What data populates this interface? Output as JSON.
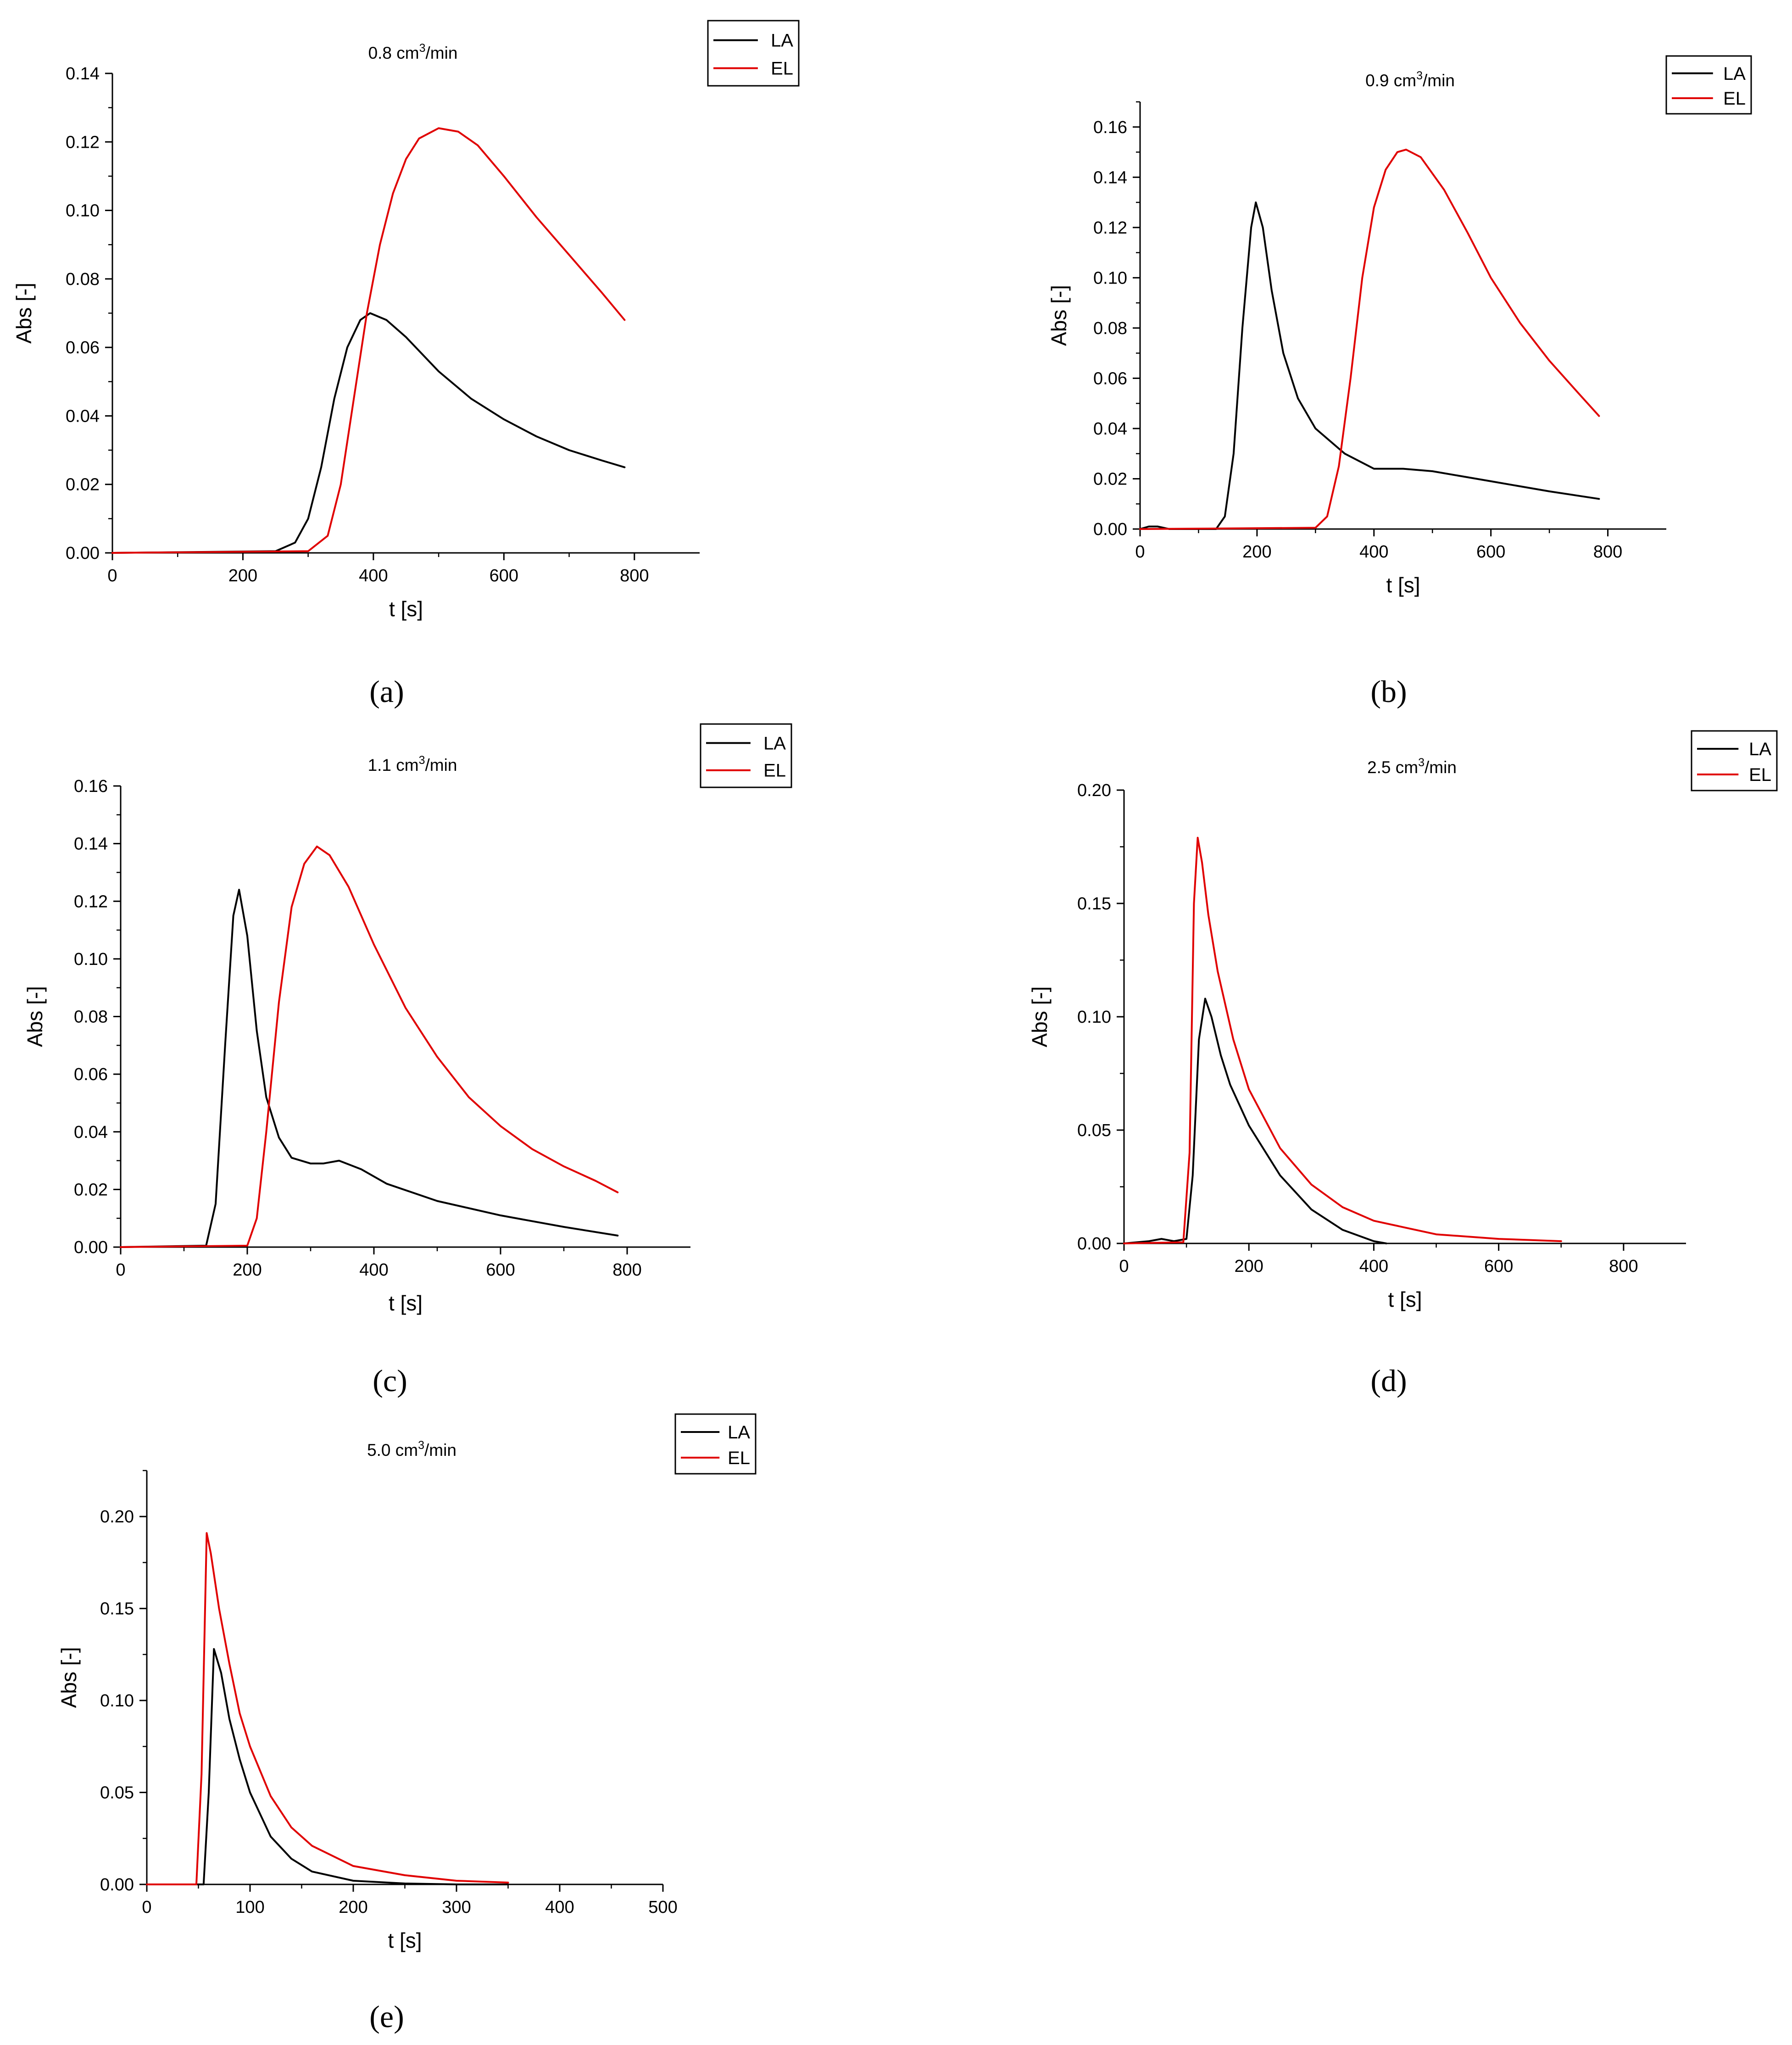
{
  "figure": {
    "legend_labels": [
      "LA",
      "EL"
    ],
    "series_colors": {
      "LA": "#000000",
      "EL": "#e00000"
    }
  },
  "chart_data": [
    {
      "type": "line",
      "panel_label": "(a)",
      "title": "0.8 cm³/min",
      "title_main": "0.8 cm",
      "title_sup": "3",
      "title_tail": "/min",
      "xlabel": "t [s]",
      "ylabel": "Abs [-]",
      "xlim": [
        0,
        900
      ],
      "ylim": [
        0,
        0.14
      ],
      "xticks": [
        0,
        200,
        400,
        600,
        800
      ],
      "yticks": [
        0.0,
        0.02,
        0.04,
        0.06,
        0.08,
        0.1,
        0.12,
        0.14
      ],
      "ytick_labels": [
        "0.00",
        "0.02",
        "0.04",
        "0.06",
        "0.08",
        "0.10",
        "0.12",
        "0.14"
      ],
      "legend": "top-right",
      "series": [
        {
          "name": "LA",
          "x": [
            0,
            250,
            280,
            300,
            320,
            340,
            360,
            380,
            395,
            420,
            450,
            500,
            550,
            600,
            650,
            700,
            750,
            785
          ],
          "y": [
            0,
            0.0005,
            0.003,
            0.01,
            0.025,
            0.045,
            0.06,
            0.068,
            0.07,
            0.068,
            0.063,
            0.053,
            0.045,
            0.039,
            0.034,
            0.03,
            0.027,
            0.025
          ]
        },
        {
          "name": "EL",
          "x": [
            0,
            300,
            330,
            350,
            370,
            390,
            410,
            430,
            450,
            470,
            500,
            530,
            560,
            600,
            650,
            700,
            750,
            785
          ],
          "y": [
            0,
            0.0005,
            0.005,
            0.02,
            0.045,
            0.07,
            0.09,
            0.105,
            0.115,
            0.121,
            0.124,
            0.123,
            0.119,
            0.11,
            0.098,
            0.087,
            0.076,
            0.068
          ]
        }
      ]
    },
    {
      "type": "line",
      "panel_label": "(b)",
      "title": "0.9 cm³/min",
      "title_main": "0.9 cm",
      "title_sup": "3",
      "title_tail": "/min",
      "xlabel": "t [s]",
      "ylabel": "Abs [-]",
      "xlim": [
        0,
        900
      ],
      "ylim": [
        0,
        0.17
      ],
      "xticks": [
        0,
        200,
        400,
        600,
        800
      ],
      "yticks": [
        0.0,
        0.02,
        0.04,
        0.06,
        0.08,
        0.1,
        0.12,
        0.14,
        0.16
      ],
      "ytick_labels": [
        "0.00",
        "0.02",
        "0.04",
        "0.06",
        "0.08",
        "0.10",
        "0.12",
        "0.14",
        "0.16"
      ],
      "legend": "top-right",
      "series": [
        {
          "name": "LA",
          "x": [
            0,
            15,
            30,
            50,
            130,
            145,
            160,
            175,
            190,
            198,
            210,
            225,
            245,
            270,
            300,
            350,
            400,
            450,
            500,
            600,
            700,
            785
          ],
          "y": [
            0,
            0.001,
            0.001,
            0,
            0,
            0.005,
            0.03,
            0.08,
            0.12,
            0.13,
            0.12,
            0.095,
            0.07,
            0.052,
            0.04,
            0.03,
            0.024,
            0.024,
            0.023,
            0.019,
            0.015,
            0.012
          ]
        },
        {
          "name": "EL",
          "x": [
            0,
            300,
            320,
            340,
            360,
            380,
            400,
            420,
            440,
            455,
            480,
            520,
            560,
            600,
            650,
            700,
            750,
            785
          ],
          "y": [
            0,
            0.0005,
            0.005,
            0.025,
            0.06,
            0.1,
            0.128,
            0.143,
            0.15,
            0.151,
            0.148,
            0.135,
            0.118,
            0.1,
            0.082,
            0.067,
            0.054,
            0.045
          ]
        }
      ]
    },
    {
      "type": "line",
      "panel_label": "(c)",
      "title": "1.1 cm³/min",
      "title_main": "1.1 cm",
      "title_sup": "3",
      "title_tail": "/min",
      "xlabel": "t [s]",
      "ylabel": "Abs [-]",
      "xlim": [
        0,
        900
      ],
      "ylim": [
        0,
        0.16
      ],
      "xticks": [
        0,
        200,
        400,
        600,
        800
      ],
      "yticks": [
        0.0,
        0.02,
        0.04,
        0.06,
        0.08,
        0.1,
        0.12,
        0.14,
        0.16
      ],
      "ytick_labels": [
        "0.00",
        "0.02",
        "0.04",
        "0.06",
        "0.08",
        "0.10",
        "0.12",
        "0.14",
        "0.16"
      ],
      "legend": "top-right",
      "series": [
        {
          "name": "LA",
          "x": [
            0,
            135,
            150,
            165,
            178,
            187,
            200,
            215,
            230,
            250,
            270,
            300,
            320,
            345,
            380,
            420,
            500,
            600,
            700,
            785
          ],
          "y": [
            0,
            0.0005,
            0.015,
            0.07,
            0.115,
            0.124,
            0.108,
            0.075,
            0.052,
            0.038,
            0.031,
            0.029,
            0.029,
            0.03,
            0.027,
            0.022,
            0.016,
            0.011,
            0.007,
            0.004
          ]
        },
        {
          "name": "EL",
          "x": [
            0,
            200,
            215,
            230,
            250,
            270,
            290,
            310,
            330,
            360,
            400,
            450,
            500,
            550,
            600,
            650,
            700,
            750,
            785
          ],
          "y": [
            0,
            0.0005,
            0.01,
            0.04,
            0.085,
            0.118,
            0.133,
            0.139,
            0.136,
            0.125,
            0.105,
            0.083,
            0.066,
            0.052,
            0.042,
            0.034,
            0.028,
            0.023,
            0.019
          ]
        }
      ]
    },
    {
      "type": "line",
      "panel_label": "(d)",
      "title": "2.5 cm³/min",
      "title_main": "2.5 cm",
      "title_sup": "3",
      "title_tail": "/min",
      "xlabel": "t [s]",
      "ylabel": "Abs [-]",
      "xlim": [
        0,
        900
      ],
      "ylim": [
        0,
        0.2
      ],
      "xticks": [
        0,
        200,
        400,
        600,
        800
      ],
      "yticks": [
        0.0,
        0.05,
        0.1,
        0.15,
        0.2
      ],
      "ytick_labels": [
        "0.00",
        "0.05",
        "0.10",
        "0.15",
        "0.20"
      ],
      "legend": "top-right",
      "series": [
        {
          "name": "LA",
          "x": [
            0,
            40,
            60,
            80,
            100,
            110,
            120,
            130,
            140,
            155,
            170,
            200,
            250,
            300,
            350,
            400,
            420
          ],
          "y": [
            0,
            0.001,
            0.002,
            0.001,
            0.002,
            0.03,
            0.09,
            0.108,
            0.1,
            0.083,
            0.07,
            0.052,
            0.03,
            0.015,
            0.006,
            0.001,
            0
          ]
        },
        {
          "name": "EL",
          "x": [
            0,
            95,
            105,
            112,
            118,
            125,
            135,
            150,
            175,
            200,
            250,
            300,
            350,
            400,
            450,
            500,
            600,
            700
          ],
          "y": [
            0,
            0.0005,
            0.04,
            0.15,
            0.179,
            0.168,
            0.145,
            0.12,
            0.09,
            0.068,
            0.042,
            0.026,
            0.016,
            0.01,
            0.007,
            0.004,
            0.002,
            0.001
          ]
        }
      ]
    },
    {
      "type": "line",
      "panel_label": "(e)",
      "title": "5.0 cm³/min",
      "title_main": "5.0 cm",
      "title_sup": "3",
      "title_tail": "/min",
      "xlabel": "t [s]",
      "ylabel": "Abs [-]",
      "xlim": [
        0,
        500
      ],
      "ylim": [
        0,
        0.225
      ],
      "xticks": [
        0,
        100,
        200,
        300,
        400,
        500
      ],
      "yticks": [
        0.0,
        0.05,
        0.1,
        0.15,
        0.2
      ],
      "ytick_labels": [
        "0.00",
        "0.05",
        "0.10",
        "0.15",
        "0.20"
      ],
      "legend": "top-right",
      "series": [
        {
          "name": "LA",
          "x": [
            0,
            55,
            60,
            65,
            72,
            80,
            90,
            100,
            120,
            140,
            160,
            200,
            250,
            300,
            350
          ],
          "y": [
            0,
            0,
            0.05,
            0.128,
            0.115,
            0.09,
            0.068,
            0.05,
            0.026,
            0.014,
            0.007,
            0.002,
            0.0005,
            0,
            0
          ]
        },
        {
          "name": "EL",
          "x": [
            0,
            48,
            53,
            58,
            62,
            70,
            80,
            90,
            100,
            120,
            140,
            160,
            200,
            250,
            300,
            350
          ],
          "y": [
            0,
            0,
            0.06,
            0.191,
            0.18,
            0.15,
            0.12,
            0.093,
            0.075,
            0.048,
            0.031,
            0.021,
            0.01,
            0.005,
            0.002,
            0.001
          ]
        }
      ]
    }
  ]
}
